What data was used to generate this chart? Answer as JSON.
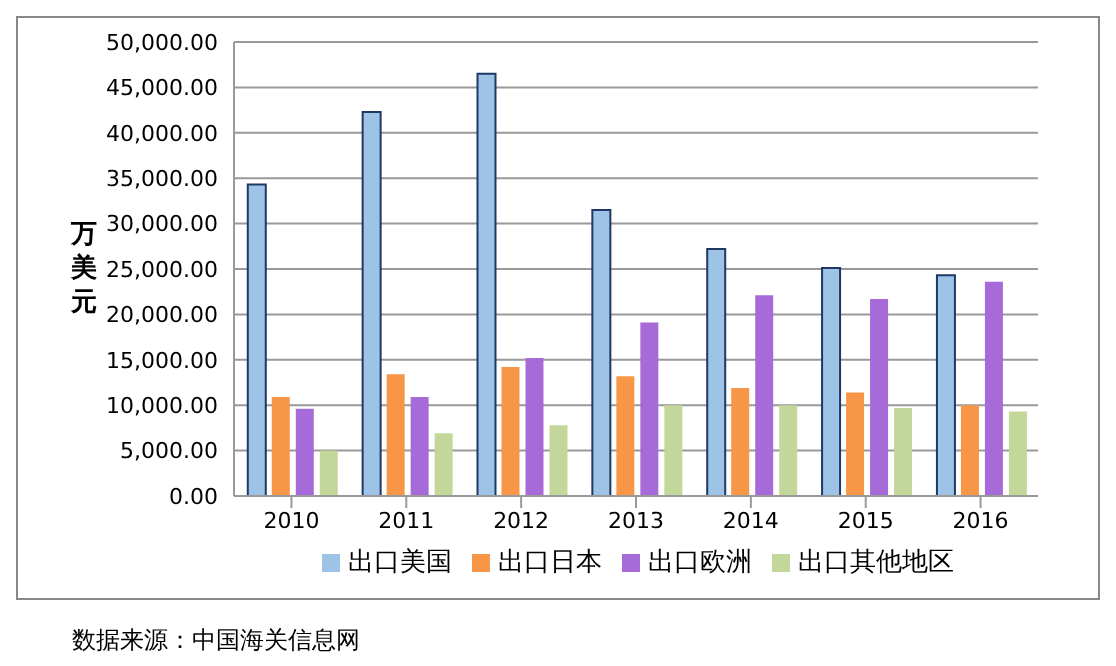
{
  "chart_data": {
    "type": "bar",
    "ylabel": "万美元",
    "categories": [
      "2010",
      "2011",
      "2012",
      "2013",
      "2014",
      "2015",
      "2016"
    ],
    "series": [
      {
        "name": "出口美国",
        "color": "#9dc3e6",
        "values": [
          34300,
          42300,
          46500,
          31500,
          27200,
          25100,
          24300
        ]
      },
      {
        "name": "出口日本",
        "color": "#f79646",
        "values": [
          10900,
          13400,
          14200,
          13200,
          11900,
          11400,
          10000
        ]
      },
      {
        "name": "出口欧洲",
        "color": "#a66bd8",
        "values": [
          9600,
          10900,
          15200,
          19100,
          22100,
          21700,
          23600
        ]
      },
      {
        "name": "出口其他地区",
        "color": "#c4d79b",
        "values": [
          5000,
          6900,
          7800,
          10000,
          10000,
          9700,
          9300
        ]
      }
    ],
    "ylim": [
      0,
      50000
    ],
    "yticks": [
      {
        "value": 0,
        "label": "0.00"
      },
      {
        "value": 5000,
        "label": "5,000.00"
      },
      {
        "value": 10000,
        "label": "10,000.00"
      },
      {
        "value": 15000,
        "label": "15,000.00"
      },
      {
        "value": 20000,
        "label": "20,000.00"
      },
      {
        "value": 25000,
        "label": "25,000.00"
      },
      {
        "value": 30000,
        "label": "30,000.00"
      },
      {
        "value": 35000,
        "label": "35,000.00"
      },
      {
        "value": 40000,
        "label": "40,000.00"
      },
      {
        "value": 45000,
        "label": "45,000.00"
      },
      {
        "value": 50000,
        "label": "50,000.00"
      }
    ],
    "grid": "y",
    "legend": "bottom",
    "annotations": [
      "数据来源：中国海关信息网"
    ]
  }
}
